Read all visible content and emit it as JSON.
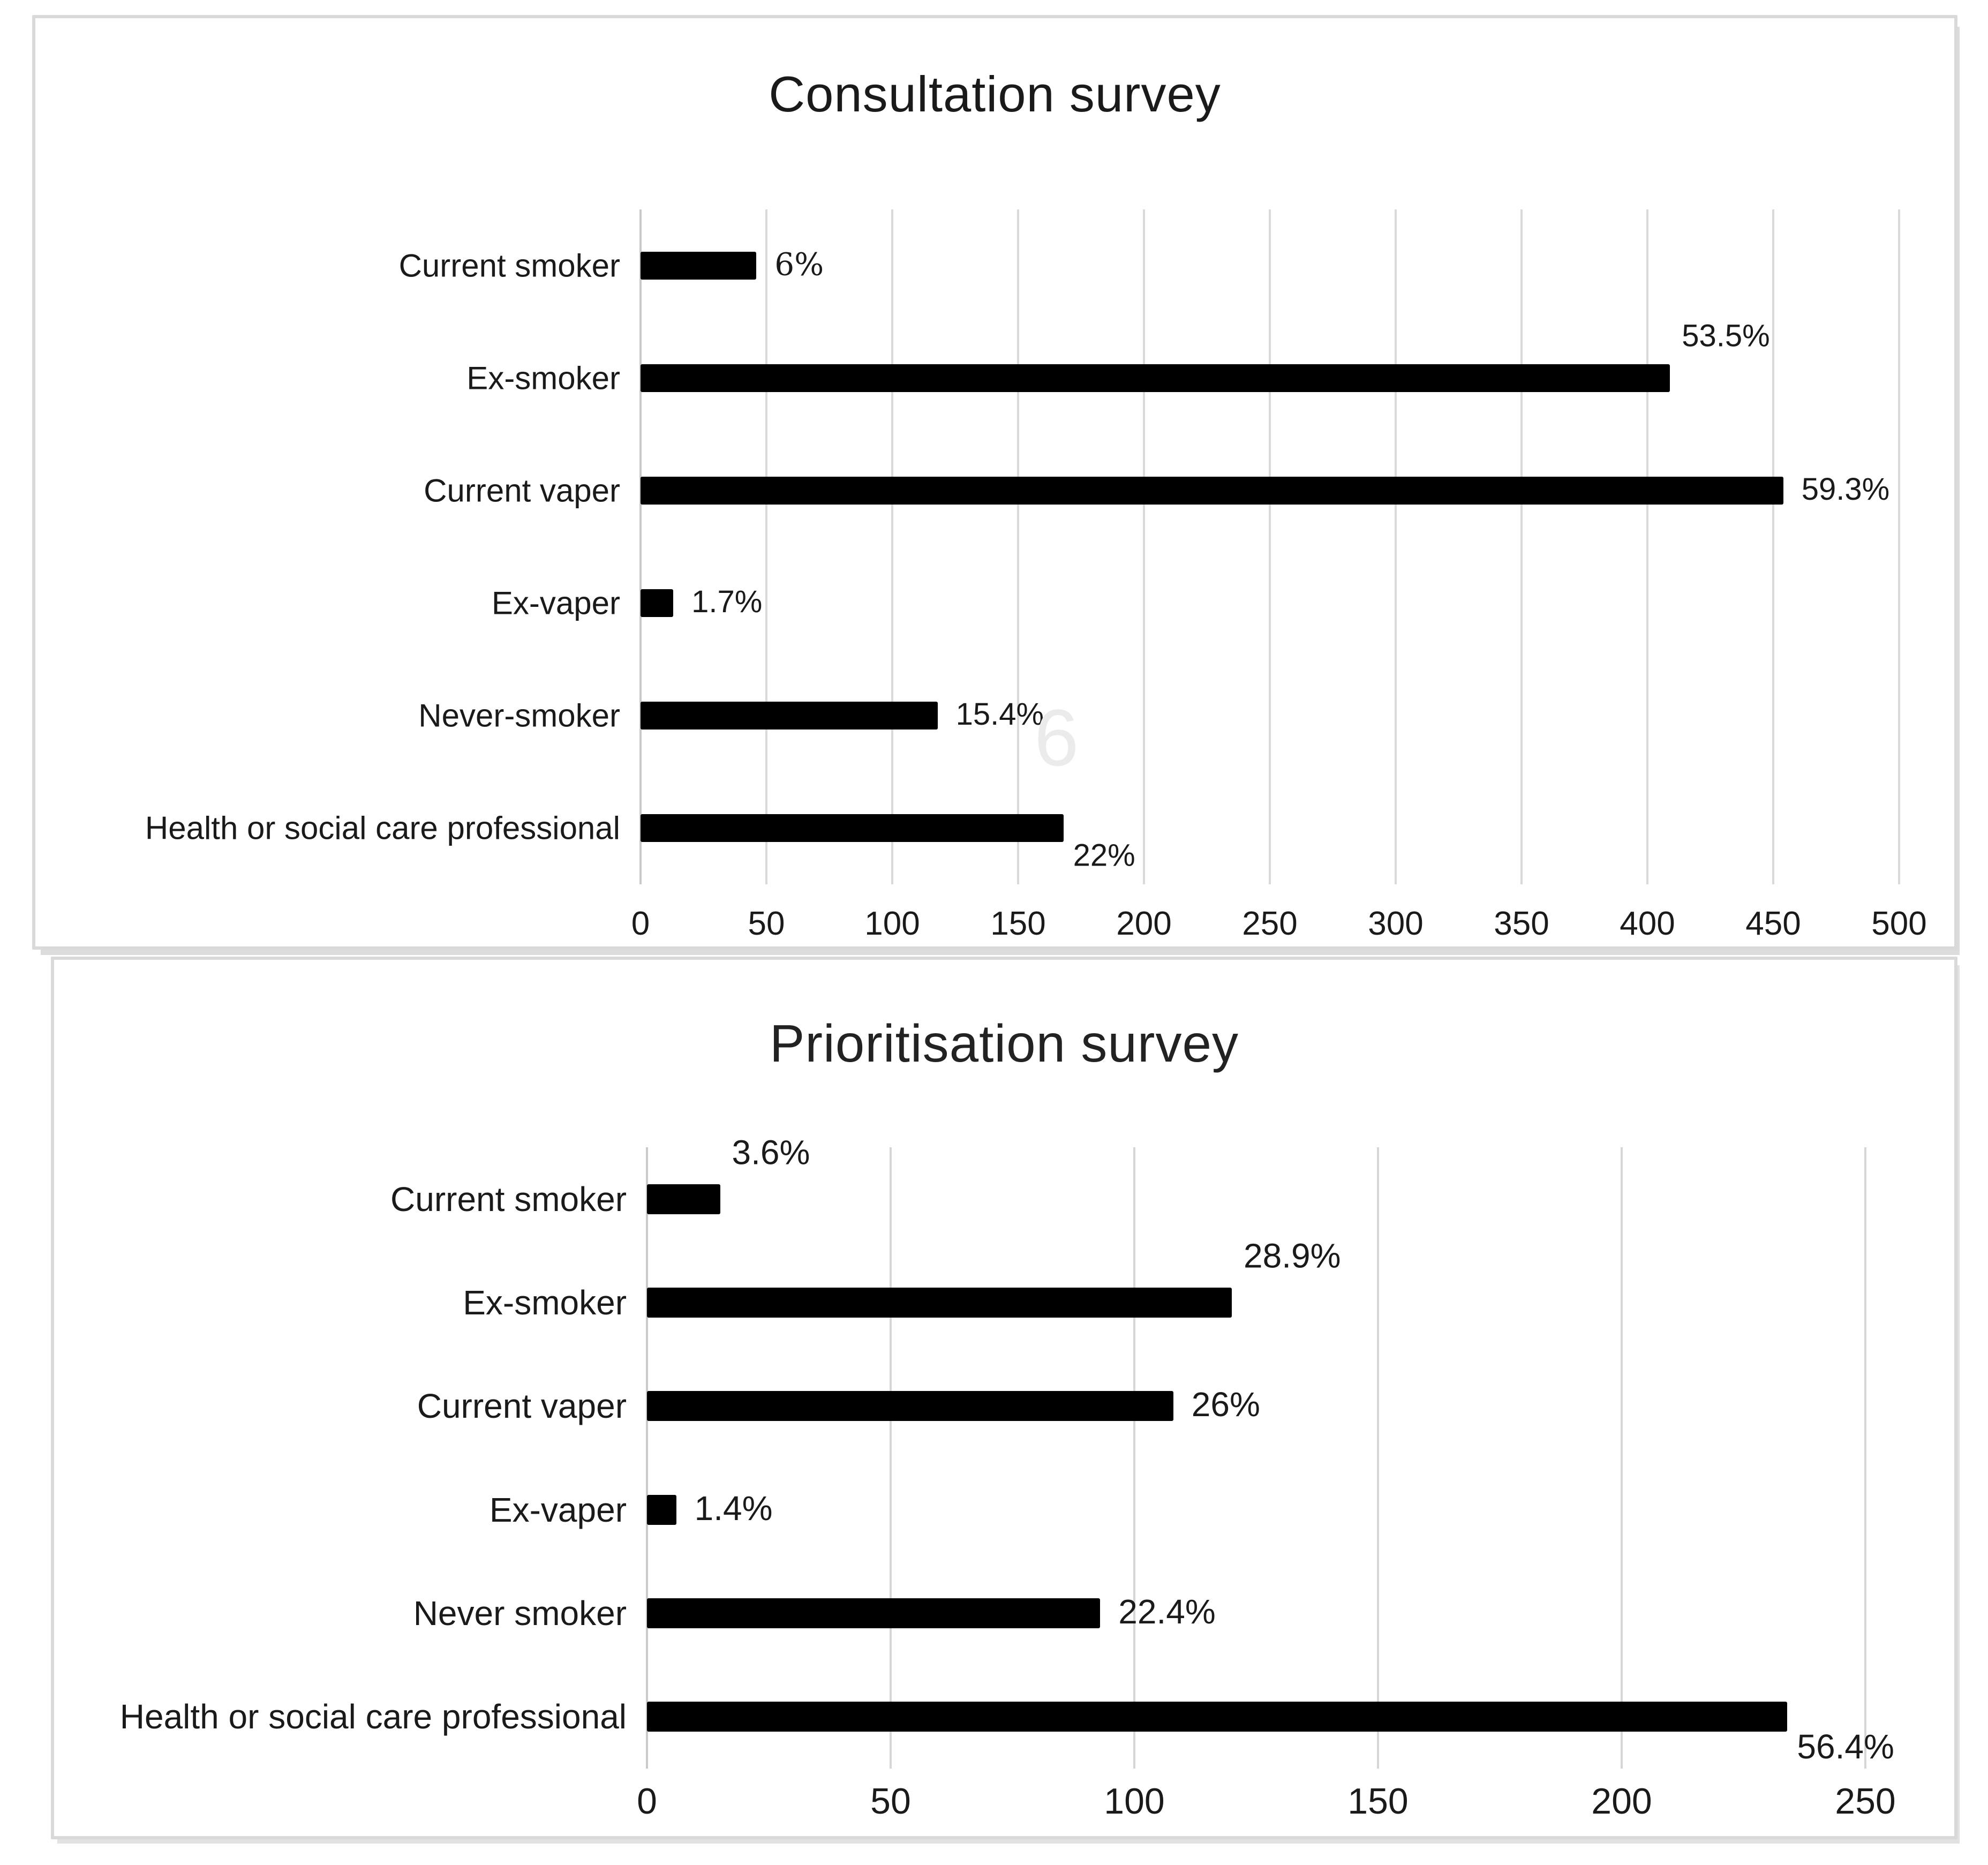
{
  "figure": {
    "description_titles": [
      "Consultation survey",
      "Prioritisation survey"
    ]
  },
  "colors": {
    "bar": "#000000",
    "gridline": "#d9d9d9",
    "panel_border": "#d9d9d9",
    "text": "#1a1a1a",
    "background": "#ffffff"
  },
  "chart_data": [
    {
      "type": "bar",
      "orientation": "horizontal",
      "title": "Consultation survey",
      "categories": [
        "Current smoker",
        "Ex-smoker",
        "Current vaper",
        "Ex-vaper",
        "Never-smoker",
        "Health or social care professional"
      ],
      "values": [
        46,
        409,
        454,
        13,
        118,
        168
      ],
      "value_labels": [
        "6%",
        "53.5%",
        "59.3%",
        "1.7%",
        "15.4%",
        "22%"
      ],
      "label_pos": [
        "right",
        "above",
        "right",
        "right",
        "right",
        "below"
      ],
      "label_fonts": [
        "serif",
        "sans",
        "sans",
        "sans",
        "sans",
        "sans"
      ],
      "xlim": [
        0,
        500
      ],
      "xticks": [
        0,
        50,
        100,
        150,
        200,
        250,
        300,
        350,
        400,
        450,
        500
      ],
      "xlabel": "",
      "ylabel": "",
      "grid": true,
      "legend": false,
      "bar_color": "#000000",
      "ghost_glyph": "6"
    },
    {
      "type": "bar",
      "orientation": "horizontal",
      "title": "Prioritisation survey",
      "categories": [
        "Current smoker",
        "Ex-smoker",
        "Current vaper",
        "Ex-vaper",
        "Never smoker",
        "Health or social care professional"
      ],
      "values": [
        15,
        120,
        108,
        6,
        93,
        234
      ],
      "value_labels": [
        "3.6%",
        "28.9%",
        "26%",
        "1.4%",
        "22.4%",
        "56.4%"
      ],
      "label_pos": [
        "above",
        "above",
        "right",
        "right",
        "right",
        "below"
      ],
      "label_fonts": [
        "sans",
        "sans",
        "sans",
        "sans",
        "sans",
        "sans"
      ],
      "xlim": [
        0,
        250
      ],
      "xticks": [
        0,
        50,
        100,
        150,
        200,
        250
      ],
      "xlabel": "",
      "ylabel": "",
      "grid": true,
      "legend": false,
      "bar_color": "#000000",
      "ghost_glyph": ""
    }
  ]
}
